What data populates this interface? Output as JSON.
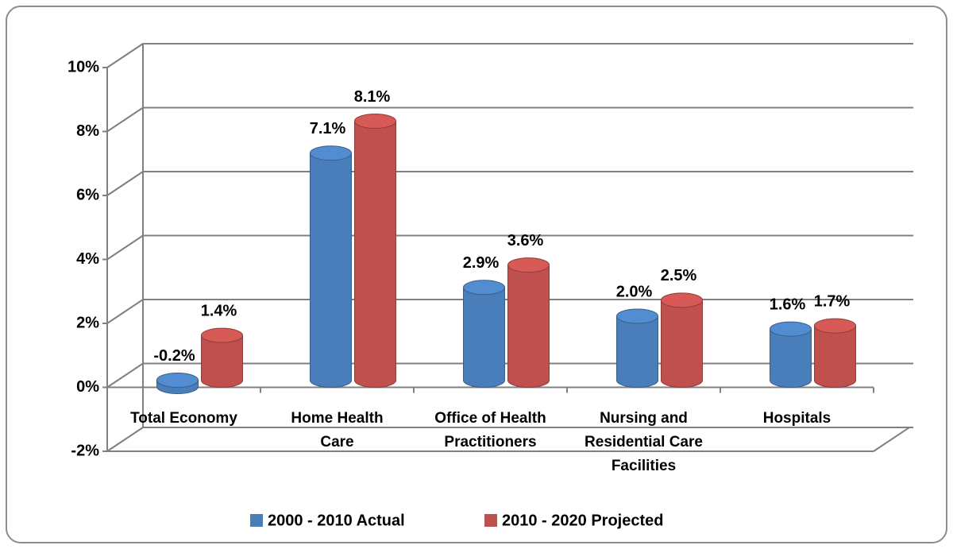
{
  "chart_data": {
    "type": "bar",
    "categories": [
      "Total Economy",
      "Home Health Care",
      "Office of Health Practitioners",
      "Nursing and Residential Care Facilities",
      "Hospitals"
    ],
    "series": [
      {
        "name": "2000 - 2010 Actual",
        "color": "#4a7ebb",
        "values": [
          -0.2,
          7.1,
          2.9,
          2.0,
          1.6
        ],
        "value_labels": [
          "-0.2%",
          "7.1%",
          "2.9%",
          "2.0%",
          "1.6%"
        ]
      },
      {
        "name": "2010 - 2020 Projected",
        "color": "#c0504d",
        "values": [
          1.4,
          8.1,
          3.6,
          2.5,
          1.7
        ],
        "value_labels": [
          "1.4%",
          "8.1%",
          "3.6%",
          "2.5%",
          "1.7%"
        ]
      }
    ],
    "ylim": [
      -2,
      10
    ],
    "yticks": [
      {
        "value": -2,
        "label": "-2%"
      },
      {
        "value": 0,
        "label": "0%"
      },
      {
        "value": 2,
        "label": "2%"
      },
      {
        "value": 4,
        "label": "4%"
      },
      {
        "value": 6,
        "label": "6%"
      },
      {
        "value": 8,
        "label": "8%"
      },
      {
        "value": 10,
        "label": "10%"
      }
    ],
    "grid": true,
    "legend": "bottom"
  }
}
